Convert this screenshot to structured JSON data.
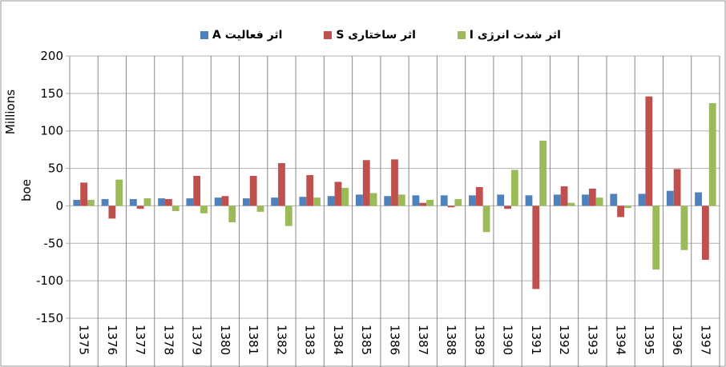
{
  "chart_data": {
    "type": "bar",
    "y_label": "boe",
    "y_unit": "Millions",
    "categories": [
      "1375",
      "1376",
      "1377",
      "1378",
      "1379",
      "1380",
      "1381",
      "1382",
      "1383",
      "1384",
      "1385",
      "1386",
      "1387",
      "1388",
      "1389",
      "1390",
      "1391",
      "1392",
      "1393",
      "1394",
      "1395",
      "1396",
      "1397"
    ],
    "series": [
      {
        "name": "اثر فعالیت A",
        "color": "#4f81bd",
        "values": [
          8,
          9,
          9,
          10,
          10,
          11,
          10,
          11,
          12,
          13,
          15,
          13,
          14,
          14,
          14,
          15,
          14,
          15,
          15,
          16,
          16,
          20,
          18
        ]
      },
      {
        "name": "اثر ساختاری S",
        "color": "#c0504d",
        "values": [
          31,
          -17,
          -4,
          9,
          40,
          13,
          40,
          57,
          41,
          32,
          61,
          62,
          4,
          -2,
          25,
          -4,
          -111,
          26,
          23,
          -15,
          146,
          49,
          -72
        ]
      },
      {
        "name": "اثر شدت انرژی I",
        "color": "#9bbb59",
        "values": [
          8,
          35,
          10,
          -7,
          -10,
          -22,
          -8,
          -27,
          11,
          24,
          17,
          15,
          8,
          9,
          -35,
          48,
          87,
          4,
          11,
          -3,
          -85,
          -59,
          137
        ]
      }
    ],
    "ylim": [
      -150,
      200
    ],
    "yticks": [
      -150,
      -100,
      -50,
      0,
      50,
      100,
      150,
      200
    ],
    "grid": true
  }
}
